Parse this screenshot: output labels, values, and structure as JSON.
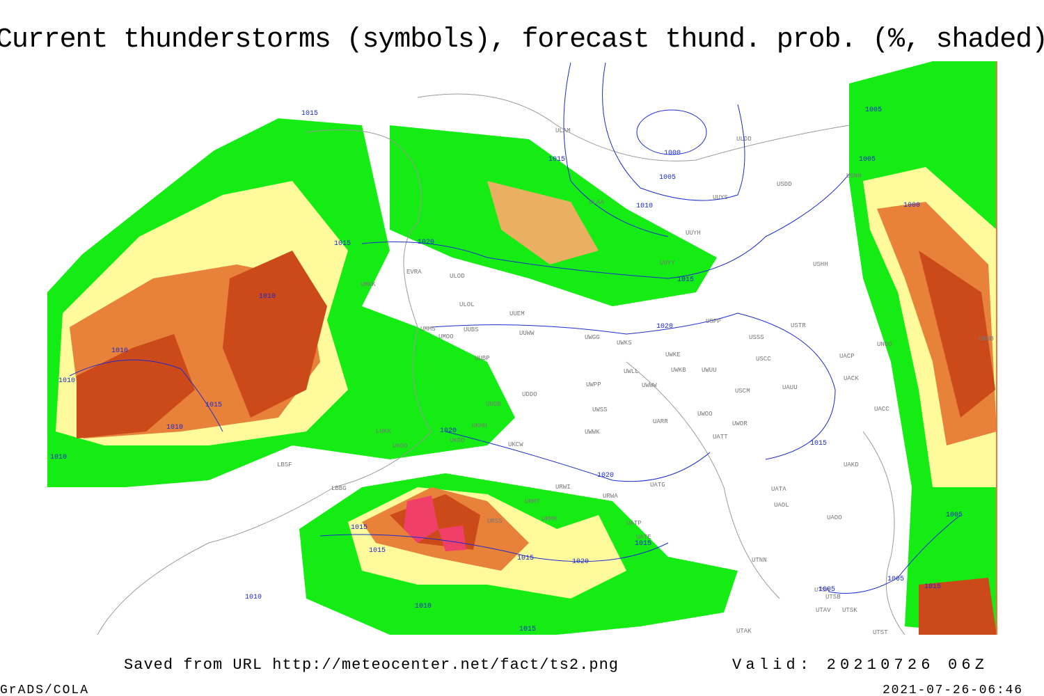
{
  "title": "Current thunderstorms (symbols), forecast thund. prob. (%, shaded)",
  "stations": [
    "ULAM",
    "ULDD",
    "USDD",
    "USNN",
    "UUYS",
    "ULAA",
    "UUYH",
    "USHH",
    "UUYY",
    "ULOD",
    "ULOL",
    "EVRA",
    "UMKK",
    "UUEM",
    "UUBS",
    "UMOO",
    "UMMS",
    "UUWW",
    "UWGG",
    "UWKS",
    "USSS",
    "USTR",
    "USPP",
    "UNOO",
    "UNBB",
    "UWKE",
    "UWKB",
    "UWUU",
    "USCC",
    "UACP",
    "UACK",
    "UUBP",
    "UWLL",
    "UWWW",
    "UWPP",
    "UDDO",
    "USCM",
    "UAUU",
    "UUOB",
    "UWSS",
    "UACC",
    "UARR",
    "UWOO",
    "UWOR",
    "UKHH",
    "LUKK",
    "UKDD",
    "UWWK",
    "UATT",
    "UKCW",
    "UKOO",
    "LBSF",
    "UAKD",
    "LBBG",
    "UATG",
    "URWI",
    "UATA",
    "URWA",
    "URMT",
    "UAOL",
    "URSS",
    "URMM",
    "UATP",
    "UAOO",
    "UATE",
    "UTNN",
    "UTSA",
    "UTSB",
    "UTAV",
    "UTSK",
    "UTST",
    "UTAK"
  ],
  "isobar_labels": [
    1015,
    1015,
    1000,
    1005,
    1010,
    1005,
    1005,
    1000,
    1020,
    1015,
    1010,
    1015,
    1020,
    1010,
    1010,
    1015,
    1010,
    1010,
    1020,
    1015,
    1020,
    1015,
    1015,
    1015,
    1015,
    1020,
    1010,
    1010,
    1015,
    1005,
    1005,
    1005,
    1015
  ],
  "footer": {
    "saved": "Saved from URL http://meteocenter.net/fact/ts2.png",
    "valid": "Valid: 20210726 06Z",
    "software": "GrADS/COLA",
    "timestamp": "2021-07-26-06:46"
  }
}
